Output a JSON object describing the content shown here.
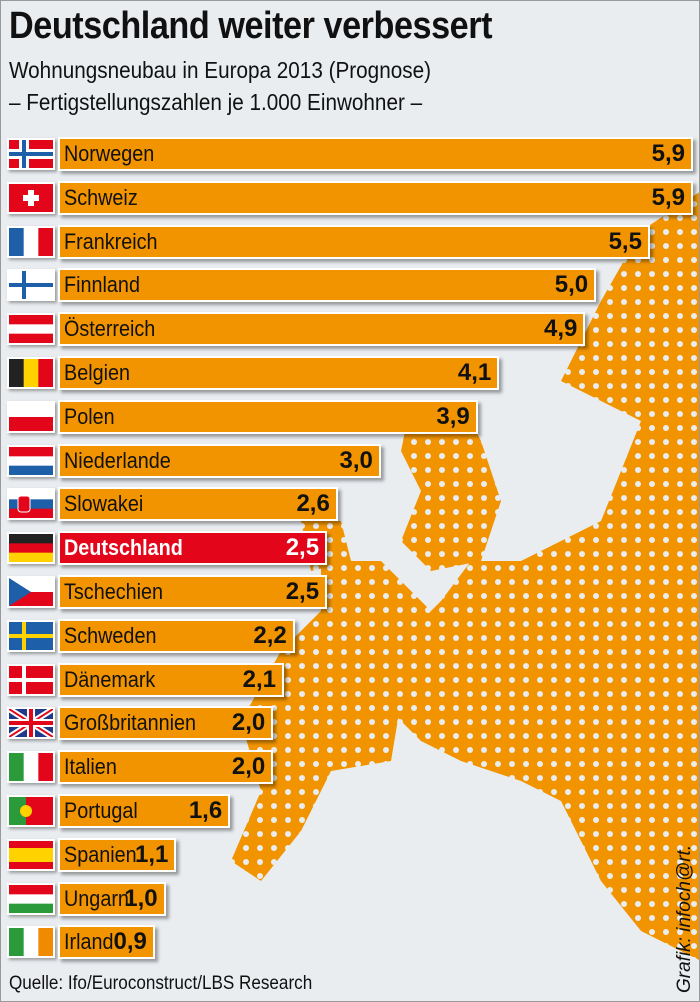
{
  "chart_data": {
    "type": "bar",
    "orientation": "horizontal",
    "title": "Deutschland weiter verbessert",
    "subtitle": "Wohnungsneubau in Europa 2013 (Prognose)",
    "subtitle2": "– Fertigstellungszahlen je 1.000 Einwohner –",
    "categories": [
      "Norwegen",
      "Schweiz",
      "Frankreich",
      "Finnland",
      "Österreich",
      "Belgien",
      "Polen",
      "Niederlande",
      "Slowakei",
      "Deutschland",
      "Tschechien",
      "Schweden",
      "Dänemark",
      "Großbritannien",
      "Italien",
      "Portugal",
      "Spanien",
      "Ungarn",
      "Irland"
    ],
    "values": [
      5.9,
      5.9,
      5.5,
      5.0,
      4.9,
      4.1,
      3.9,
      3.0,
      2.6,
      2.5,
      2.5,
      2.2,
      2.1,
      2.0,
      2.0,
      1.6,
      1.1,
      1.0,
      0.9
    ],
    "value_labels": [
      "5,9",
      "5,9",
      "5,5",
      "5,0",
      "4,9",
      "4,1",
      "3,9",
      "3,0",
      "2,6",
      "2,5",
      "2,5",
      "2,2",
      "2,1",
      "2,0",
      "2,0",
      "1,6",
      "1,1",
      "1,0",
      "0,9"
    ],
    "flags": [
      "no",
      "ch",
      "fr",
      "fi",
      "at",
      "be",
      "pl",
      "nl",
      "sk",
      "de",
      "cz",
      "se",
      "dk",
      "gb",
      "it",
      "pt",
      "es",
      "hu",
      "ie"
    ],
    "highlight": "Deutschland",
    "xlim": [
      0,
      5.9
    ],
    "source": "Quelle: Ifo/Euroconstruct/LBS Research",
    "credit": "Grafik: infoch@rt.",
    "colors": {
      "bar": "#f29400",
      "highlight": "#e3061a",
      "background": "#e9edf0"
    }
  }
}
